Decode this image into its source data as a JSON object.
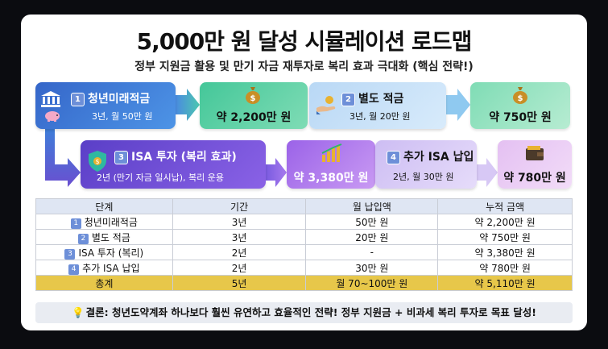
{
  "title": "5,000만 원 달성 시뮬레이션 로드맵",
  "subtitle": "정부 지원금 활용 및 만기 자금 재투자로 복리 효과 극대화 (핵심 전략!)",
  "steps": [
    {
      "num": "1",
      "title": "청년미래적금",
      "sub": "3년, 월 50만 원",
      "result": "약 2,200만 원"
    },
    {
      "num": "2",
      "title": "별도 적금",
      "sub": "3년, 월 20만 원",
      "result": "약 750만 원"
    },
    {
      "num": "3",
      "title": "ISA 투자 (복리 효과)",
      "sub": "2년 (만기 자금 일시납), 복리 운용",
      "result": "약 3,380만 원"
    },
    {
      "num": "4",
      "title": "추가 ISA 납입",
      "sub": "2년, 월 30만 원",
      "result": "약 780만 원"
    }
  ],
  "table": {
    "headers": [
      "단계",
      "기간",
      "월 납입액",
      "누적 금액"
    ],
    "rows": [
      {
        "num": "1",
        "stage": "청년미래적금",
        "period": "3년",
        "monthly": "50만 원",
        "total": "약 2,200만 원"
      },
      {
        "num": "2",
        "stage": "별도 적금",
        "period": "3년",
        "monthly": "20만 원",
        "total": "약 750만 원"
      },
      {
        "num": "3",
        "stage": "ISA 투자 (복리)",
        "period": "2년",
        "monthly": "-",
        "total": "약 3,380만 원"
      },
      {
        "num": "4",
        "stage": "추가 ISA 납입",
        "period": "2년",
        "monthly": "30만 원",
        "total": "약 780만 원"
      }
    ],
    "total_row": {
      "stage": "총계",
      "period": "5년",
      "monthly": "월 70~100만 원",
      "total": "약 5,110만 원"
    }
  },
  "conclusion": "결론: 청년도약계좌 하나보다 훨씬 유연하고 효율적인 전략! 정부 지원금 + 비과세 복리 투자로 목표 달성!",
  "icons": [
    "bank-icon",
    "piggy-bank-icon",
    "money-bag-icon",
    "hand-coin-icon",
    "shield-icon",
    "growth-chart-icon",
    "wallet-icon",
    "lightbulb-icon"
  ],
  "colors": {
    "step1": "#3d7fd9",
    "step2": "#5a9be0",
    "step3": "#6a4fd0",
    "step4": "#d7c8f5",
    "result1": "#5ed0a0",
    "result3": "#a774ea",
    "result4": "#e9c8f4",
    "total_row": "#e7c74a"
  }
}
